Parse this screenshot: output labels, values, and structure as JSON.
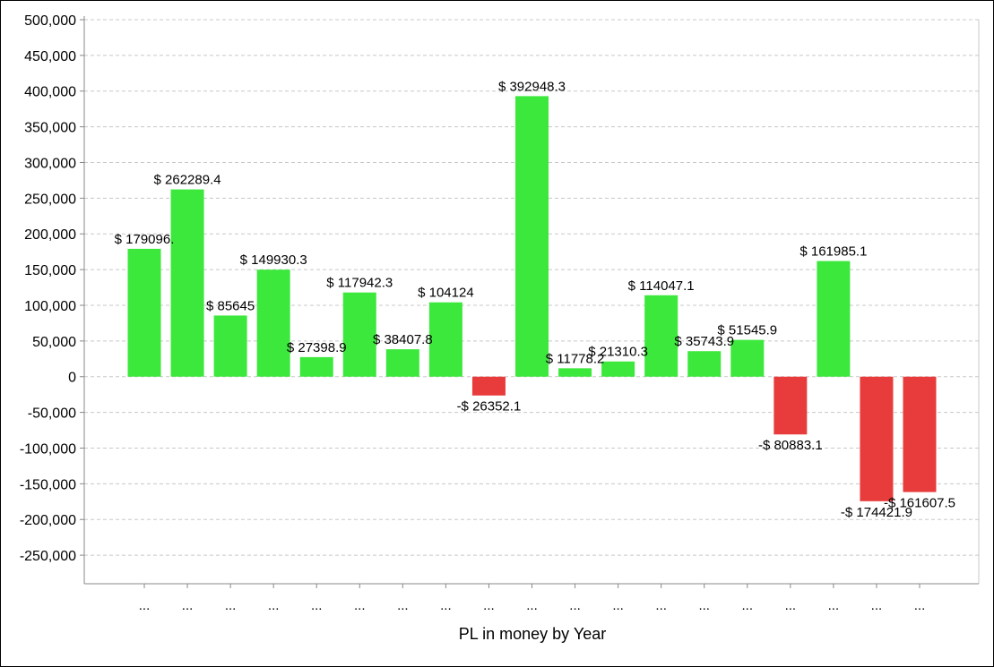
{
  "chart_data": {
    "type": "bar",
    "xlabel": "PL in money by Year",
    "ylabel": "",
    "ylim": [
      -290000,
      500000
    ],
    "yticks": [
      -250000,
      -200000,
      -150000,
      -100000,
      -50000,
      0,
      50000,
      100000,
      150000,
      200000,
      250000,
      300000,
      350000,
      400000,
      450000,
      500000
    ],
    "ytick_labels": [
      "-250,000",
      "-200,000",
      "-150,000",
      "-100,000",
      "-50,000",
      "0",
      "50,000",
      "100,000",
      "150,000",
      "200,000",
      "250,000",
      "300,000",
      "350,000",
      "400,000",
      "450,000",
      "500,000"
    ],
    "grid": true,
    "grid_style": "dashed",
    "positive_color": "#3de83d",
    "negative_color": "#e83c3c",
    "categories": [
      "...",
      "...",
      "...",
      "...",
      "...",
      "...",
      "...",
      "...",
      "...",
      "...",
      "...",
      "...",
      "...",
      "...",
      "...",
      "...",
      "...",
      "...",
      "..."
    ],
    "values": [
      179096.1,
      262289.4,
      85645,
      149930.3,
      27398.9,
      117942.3,
      38407.8,
      104124,
      -26352.1,
      392948.3,
      11778.2,
      21310.3,
      114047.1,
      35743.9,
      51545.9,
      -80883.1,
      161985.1,
      -174421.9,
      -161607.5
    ],
    "data_labels": [
      "$ 179096.",
      "$ 262289.4",
      "$ 85645",
      "$ 149930.3",
      "$ 27398.9",
      "$ 117942.3",
      "$ 38407.8",
      "$ 104124",
      "-$ 26352.1",
      "$ 392948.3",
      "$ 11778.2",
      "$ 21310.3",
      "$ 114047.1",
      "$ 35743.9",
      "$ 51545.9",
      "-$ 80883.1",
      "$ 161985.1",
      "-$ 174421.9",
      "-$ 161607.5"
    ]
  }
}
